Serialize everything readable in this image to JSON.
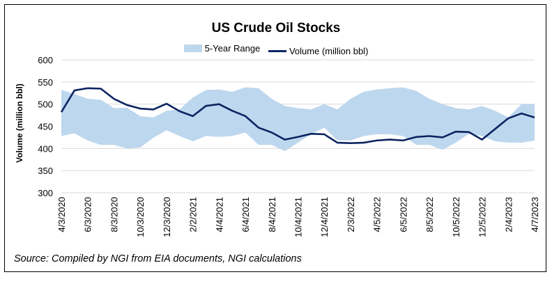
{
  "chart_data": {
    "type": "area",
    "title": "US Crude Oil Stocks",
    "ylabel": "Volume (million bbl)",
    "xlabel": "",
    "ylim": [
      300,
      600
    ],
    "yticks": [
      300,
      350,
      400,
      450,
      500,
      550,
      600
    ],
    "grid": "horizontal",
    "legend_placement": "top",
    "x_tick_labels": [
      "4/3/2020",
      "6/3/2020",
      "8/3/2020",
      "10/3/2020",
      "12/3/2020",
      "2/2/2021",
      "4/4/2021",
      "6/4/2021",
      "8/4/2021",
      "10/4/2021",
      "12/4/2021",
      "2/3/2022",
      "4/5/2022",
      "6/5/2022",
      "8/5/2022",
      "10/5/2022",
      "12/5/2022",
      "2/4/2023",
      "4/7/2023"
    ],
    "x": [
      "2020-04",
      "2020-05",
      "2020-06",
      "2020-07",
      "2020-08",
      "2020-09",
      "2020-10",
      "2020-11",
      "2020-12",
      "2021-01",
      "2021-02",
      "2021-03",
      "2021-04",
      "2021-05",
      "2021-06",
      "2021-07",
      "2021-08",
      "2021-09",
      "2021-10",
      "2021-11",
      "2021-12",
      "2022-01",
      "2022-02",
      "2022-03",
      "2022-04",
      "2022-05",
      "2022-06",
      "2022-07",
      "2022-08",
      "2022-09",
      "2022-10",
      "2022-11",
      "2022-12",
      "2023-01",
      "2023-02",
      "2023-03",
      "2023-04"
    ],
    "series": [
      {
        "name": "5-Year Range",
        "kind": "band",
        "color": "#bdd7ee",
        "upper": [
          532,
          523,
          512,
          510,
          491,
          492,
          473,
          470,
          485,
          488,
          515,
          532,
          533,
          528,
          538,
          536,
          512,
          496,
          491,
          488,
          500,
          488,
          512,
          528,
          533,
          536,
          538,
          530,
          512,
          500,
          491,
          488,
          496,
          485,
          470,
          500,
          500
        ],
        "lower": [
          428,
          434,
          418,
          408,
          408,
          400,
          402,
          424,
          441,
          428,
          416,
          428,
          426,
          428,
          436,
          408,
          408,
          394,
          413,
          432,
          447,
          418,
          418,
          428,
          432,
          432,
          428,
          408,
          408,
          397,
          413,
          433,
          428,
          416,
          413,
          413,
          418
        ]
      },
      {
        "name": "Volume (million bbl)",
        "kind": "line",
        "color": "#0c2461",
        "values": [
          482,
          531,
          536,
          535,
          512,
          498,
          490,
          488,
          501,
          484,
          473,
          496,
          500,
          485,
          473,
          447,
          436,
          420,
          426,
          433,
          432,
          413,
          412,
          413,
          418,
          420,
          418,
          426,
          428,
          425,
          438,
          437,
          420,
          444,
          468,
          479,
          470
        ]
      }
    ]
  },
  "source": "Source: Compiled by NGI from EIA documents, NGI calculations"
}
